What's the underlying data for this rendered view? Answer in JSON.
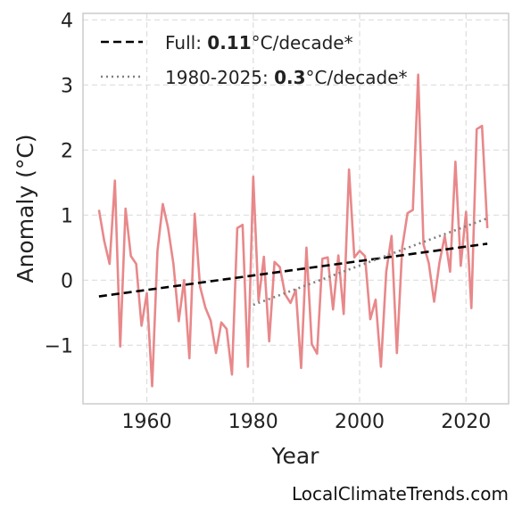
{
  "chart_data": {
    "type": "line",
    "title": "",
    "xlabel": "Year",
    "ylabel": "Anomaly (°C)",
    "xlim": [
      1948,
      2028
    ],
    "ylim": [
      -1.9,
      4.1
    ],
    "xticks": [
      1960,
      1980,
      2000,
      2020
    ],
    "yticks": [
      4,
      3,
      2,
      1,
      0,
      -1
    ],
    "ytick_labels": [
      "4",
      "3",
      "2",
      "1",
      "0",
      "−1"
    ],
    "grid": true,
    "legend_position": "top-left",
    "series": [
      {
        "role": "observations",
        "color": "#e8888a",
        "x": [
          1951,
          1952,
          1953,
          1954,
          1955,
          1956,
          1957,
          1958,
          1959,
          1960,
          1961,
          1962,
          1963,
          1964,
          1965,
          1966,
          1967,
          1968,
          1969,
          1970,
          1971,
          1972,
          1973,
          1974,
          1975,
          1976,
          1977,
          1978,
          1979,
          1980,
          1981,
          1982,
          1983,
          1984,
          1985,
          1986,
          1987,
          1988,
          1989,
          1990,
          1991,
          1992,
          1993,
          1994,
          1995,
          1996,
          1997,
          1998,
          1999,
          2000,
          2001,
          2002,
          2003,
          2004,
          2005,
          2006,
          2007,
          2008,
          2009,
          2010,
          2011,
          2012,
          2013,
          2014,
          2015,
          2016,
          2017,
          2018,
          2019,
          2020,
          2021,
          2022,
          2023,
          2024
        ],
        "y": [
          1.08,
          0.6,
          0.25,
          1.53,
          -1.02,
          1.1,
          0.37,
          0.25,
          -0.7,
          -0.2,
          -1.63,
          0.45,
          1.17,
          0.8,
          0.25,
          -0.63,
          0.0,
          -1.2,
          1.02,
          -0.1,
          -0.42,
          -0.62,
          -1.12,
          -0.65,
          -0.75,
          -1.45,
          0.8,
          0.85,
          -1.33,
          1.59,
          -0.32,
          0.36,
          -0.94,
          0.28,
          0.2,
          -0.22,
          -0.35,
          -0.15,
          -1.35,
          0.5,
          -0.98,
          -1.13,
          0.33,
          0.35,
          -0.45,
          0.38,
          -0.52,
          1.7,
          0.35,
          0.45,
          0.37,
          -0.6,
          -0.3,
          -1.33,
          0.13,
          0.68,
          -1.12,
          0.5,
          1.03,
          1.08,
          3.16,
          0.55,
          0.26,
          -0.33,
          0.27,
          0.68,
          0.13,
          1.82,
          0.22,
          1.05,
          -0.43,
          2.32,
          2.37,
          0.8
        ]
      },
      {
        "role": "trend-full",
        "color": "#000000",
        "style": "dashed",
        "x": [
          1951,
          2024
        ],
        "y": [
          -0.25,
          0.56
        ]
      },
      {
        "role": "trend-recent",
        "color": "#808080",
        "style": "dotted",
        "x": [
          1980,
          2024
        ],
        "y": [
          -0.38,
          0.95
        ]
      }
    ]
  },
  "legend": {
    "full": {
      "prefix": "Full: ",
      "value": "0.11",
      "suffix": "°C/decade*"
    },
    "recent": {
      "prefix": "1980-2025: ",
      "value": "0.3",
      "suffix": "°C/decade*"
    }
  },
  "watermark": "LocalClimateTrends.com"
}
